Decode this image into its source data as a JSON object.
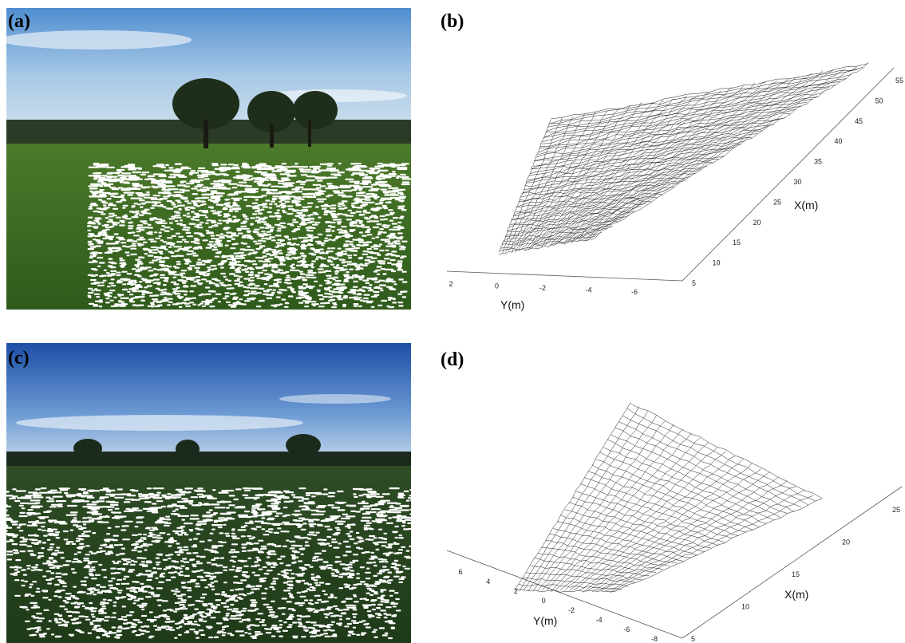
{
  "panels": [
    {
      "label": "(a)"
    },
    {
      "label": "(b)",
      "x_axis": {
        "label": "X(m)",
        "ticks": [
          "5",
          "10",
          "15",
          "20",
          "25",
          "30",
          "35",
          "40",
          "45",
          "50",
          "55"
        ]
      },
      "y_axis": {
        "label": "Y(m)",
        "ticks": [
          "2",
          "0",
          "-2",
          "-4",
          "-6"
        ]
      }
    },
    {
      "label": "(c)"
    },
    {
      "label": "(d)",
      "x_axis": {
        "label": "X(m)",
        "ticks": [
          "5",
          "10",
          "15",
          "20",
          "25"
        ]
      },
      "y_axis": {
        "label": "Y(m)",
        "ticks": [
          "6",
          "4",
          "2",
          "0",
          "-2",
          "-4",
          "-6",
          "-8"
        ]
      }
    }
  ]
}
